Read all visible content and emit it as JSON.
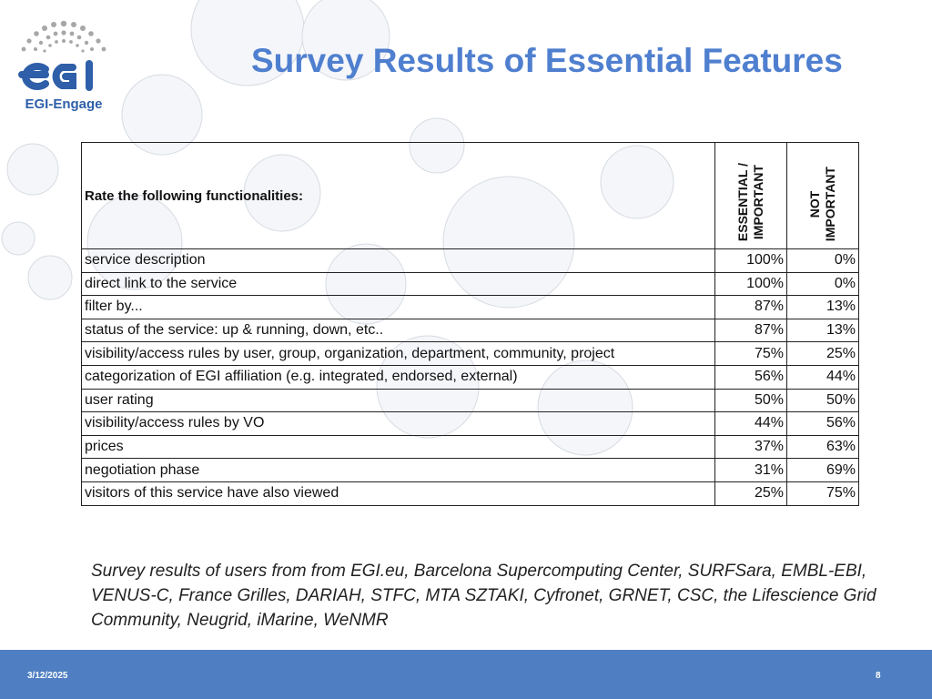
{
  "colors": {
    "title": "#4f7fcf",
    "footer_bar": "#4f7fc2",
    "logo_blue": "#2e5fa8",
    "logo_dots": "#a7a7a7"
  },
  "logo": {
    "caption": "EGI-Engage"
  },
  "slide": {
    "title": "Survey Results of Essential Features"
  },
  "table": {
    "question_header": "Rate the following functionalities:",
    "col_essential": "ESSENTIAL / IMPORTANT",
    "col_essential_lines": [
      "ESSENTIAL /",
      "IMPORTANT"
    ],
    "col_not": "NOT IMPORTANT",
    "col_not_lines": [
      "NOT",
      "IMPORTANT"
    ],
    "rows": [
      {
        "label": "service description",
        "essential": "100%",
        "not": "0%"
      },
      {
        "label": "direct link to the service",
        "essential": "100%",
        "not": "0%"
      },
      {
        "label": "filter by...",
        "essential": "87%",
        "not": "13%"
      },
      {
        "label": "status of the service: up & running, down, etc..",
        "essential": "87%",
        "not": "13%"
      },
      {
        "label": "visibility/access rules by user, group, organization, department, community, project",
        "essential": "75%",
        "not": "25%"
      },
      {
        "label": "categorization of EGI affiliation (e.g. integrated, endorsed, external)",
        "essential": "56%",
        "not": "44%"
      },
      {
        "label": "user rating",
        "essential": "50%",
        "not": "50%"
      },
      {
        "label": "visibility/access rules by VO",
        "essential": "44%",
        "not": "56%"
      },
      {
        "label": "prices",
        "essential": "37%",
        "not": "63%"
      },
      {
        "label": "negotiation phase",
        "essential": "31%",
        "not": "69%"
      },
      {
        "label": "visitors of this service have also viewed",
        "essential": "25%",
        "not": "75%"
      }
    ]
  },
  "note": "Survey results of users from from EGI.eu, Barcelona Supercomputing Center, SURFSara, EMBL-EBI, VENUS-C, France Grilles, DARIAH, STFC, MTA SZTAKI, Cyfronet, GRNET, CSC, the Lifescience Grid Community, Neugrid, iMarine, WeNMR",
  "footer": {
    "date": "3/12/2025",
    "page": "8"
  }
}
